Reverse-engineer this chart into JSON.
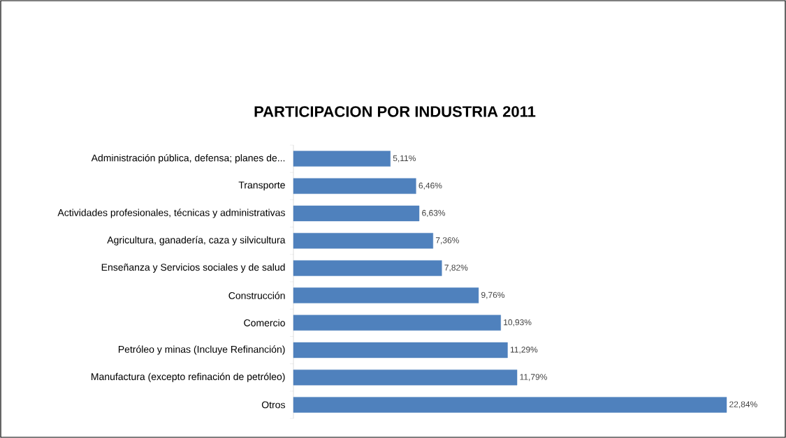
{
  "chart_data": {
    "type": "bar",
    "orientation": "horizontal",
    "title": "PARTICIPACION POR INDUSTRIA 2011",
    "categories": [
      "Administración pública, defensa; planes de...",
      "Transporte",
      "Actividades profesionales, técnicas y administrativas",
      "Agricultura, ganadería, caza y silvicultura",
      "Enseñanza  y Servicios sociales y de salud",
      "Construcción",
      "Comercio",
      "Petróleo y minas (Incluye Refinanción)",
      "Manufactura (excepto refinación de petróleo)",
      "Otros"
    ],
    "values": [
      5.11,
      6.46,
      6.63,
      7.36,
      7.82,
      9.76,
      10.93,
      11.29,
      11.79,
      22.84
    ],
    "value_labels": [
      "5,11%",
      "6,46%",
      "6,63%",
      "7,36%",
      "7,82%",
      "9,76%",
      "10,93%",
      "11,29%",
      "11,79%",
      "22,84%"
    ],
    "color": "#4f81bd"
  }
}
